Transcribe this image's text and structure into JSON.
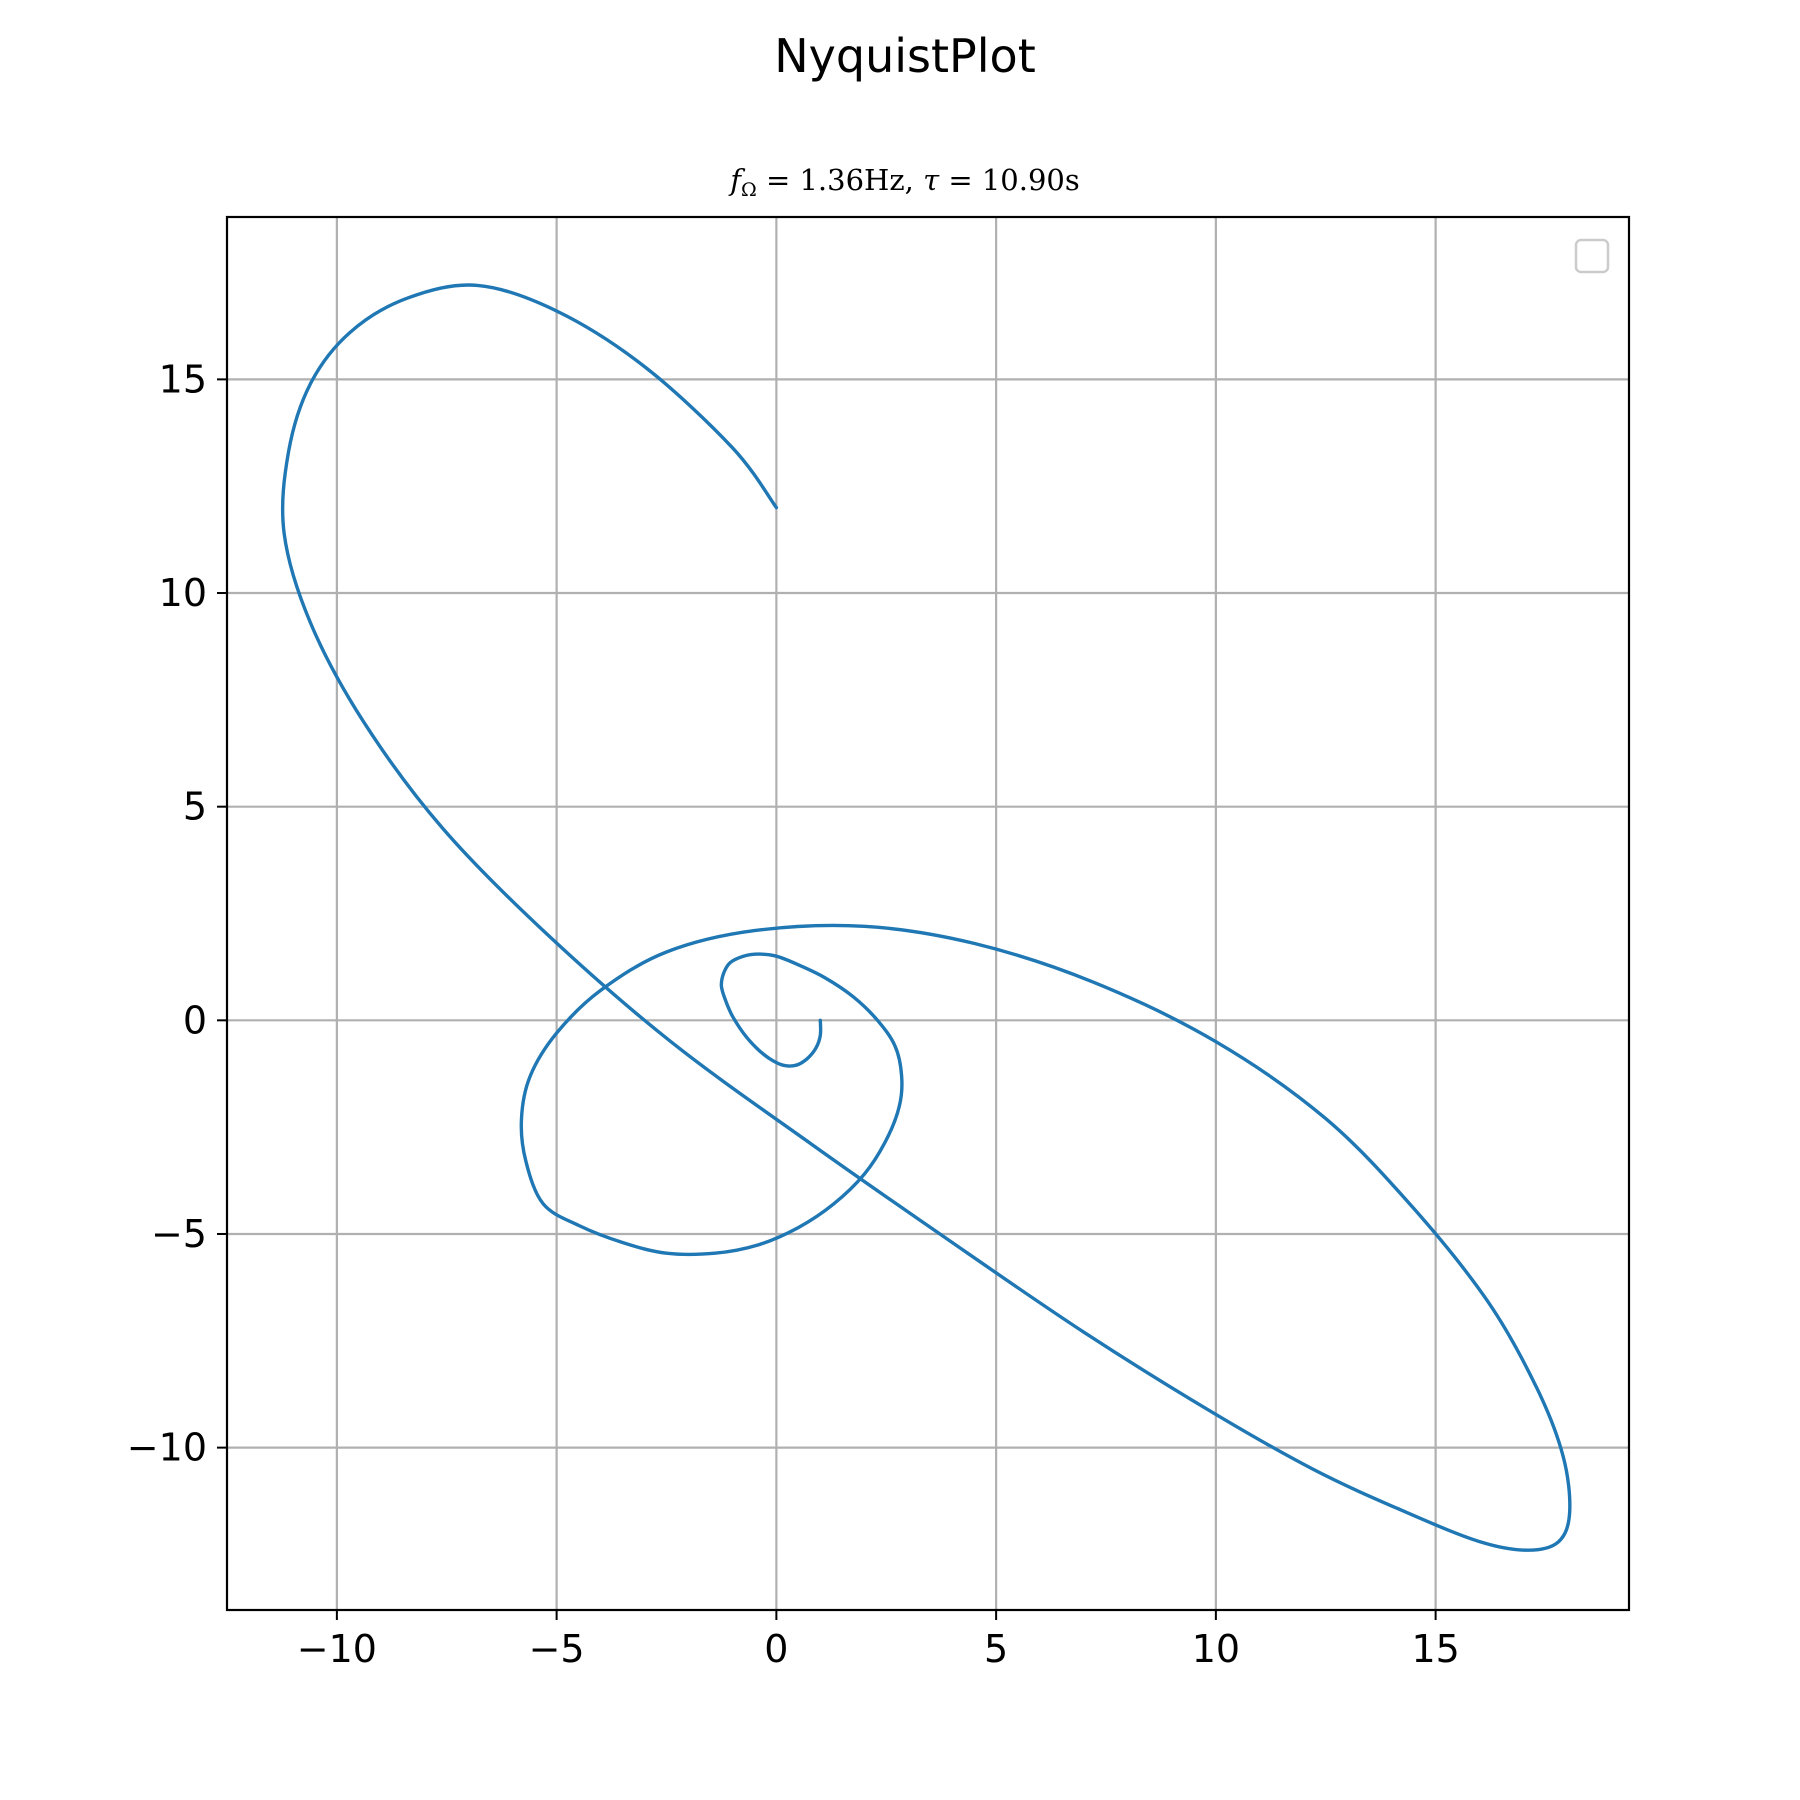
{
  "chart_data": {
    "type": "line",
    "title": "NyquistPlot",
    "subtitle": {
      "f_symbol": "f",
      "f_subscript": "Ω",
      "f_value": " = 1.36Hz, ",
      "tau_symbol": "τ",
      "tau_value": " = 10.90s"
    },
    "xlabel": "",
    "ylabel": "",
    "xlim": [
      -12.5,
      19.4
    ],
    "ylim": [
      -13.8,
      18.8
    ],
    "x_ticks": [
      -10,
      -5,
      0,
      5,
      10,
      15
    ],
    "y_ticks": [
      -10,
      -5,
      0,
      5,
      10,
      15
    ],
    "x_tick_labels": [
      "−10",
      "−5",
      "0",
      "5",
      "10",
      "15"
    ],
    "y_tick_labels": [
      "−10",
      "−5",
      "0",
      "5",
      "10",
      "15"
    ],
    "grid": true,
    "legend": {
      "placement": "top-right",
      "entries": []
    },
    "colors": {
      "line": "#1f77b4",
      "grid": "#b0b0b0",
      "axes": "#000000"
    },
    "series": [
      {
        "x": [
          1.0,
          1.0,
          0.9,
          0.7,
          0.45,
          0.15,
          -0.15,
          -0.45,
          -0.75,
          -1.0,
          -1.15,
          -1.25,
          -1.2,
          -1.05,
          -0.75,
          -0.4,
          0.0,
          0.5,
          1.1,
          1.75,
          2.3,
          2.7,
          2.85,
          2.8,
          2.5,
          2.0,
          1.3,
          0.5,
          -0.4,
          -1.4,
          -2.5,
          -3.5,
          -4.5,
          -5.3,
          -5.7,
          -5.8,
          -5.6,
          -5.0,
          -4.0,
          -2.5,
          -0.5,
          2.0,
          4.5,
          7.2,
          10.0,
          12.5,
          14.5,
          16.2,
          17.3,
          17.9,
          18.05,
          17.8,
          17.1,
          16.0,
          14.3,
          12.2,
          9.8,
          7.0,
          4.0,
          0.8,
          -2.4,
          -5.2,
          -7.6,
          -9.4,
          -10.6,
          -11.2,
          -11.1,
          -10.6,
          -9.7,
          -8.4,
          -6.8,
          -5.0,
          -3.0,
          -1.0,
          0.0
        ],
        "y": [
          0.0,
          -0.35,
          -0.65,
          -0.9,
          -1.05,
          -1.05,
          -0.9,
          -0.65,
          -0.3,
          0.1,
          0.45,
          0.8,
          1.1,
          1.35,
          1.5,
          1.55,
          1.5,
          1.3,
          1.0,
          0.55,
          0.0,
          -0.6,
          -1.3,
          -2.0,
          -2.8,
          -3.6,
          -4.3,
          -4.85,
          -5.25,
          -5.45,
          -5.45,
          -5.2,
          -4.8,
          -4.3,
          -3.3,
          -2.3,
          -1.3,
          -0.3,
          0.7,
          1.6,
          2.1,
          2.2,
          1.8,
          0.9,
          -0.5,
          -2.3,
          -4.4,
          -6.6,
          -8.6,
          -10.2,
          -11.5,
          -12.2,
          -12.4,
          -12.2,
          -11.5,
          -10.5,
          -9.1,
          -7.3,
          -5.2,
          -2.9,
          -0.5,
          2.0,
          4.5,
          7.0,
          9.3,
          11.4,
          13.3,
          14.9,
          16.1,
          16.9,
          17.2,
          16.6,
          15.3,
          13.4,
          12.0
        ]
      }
    ]
  }
}
